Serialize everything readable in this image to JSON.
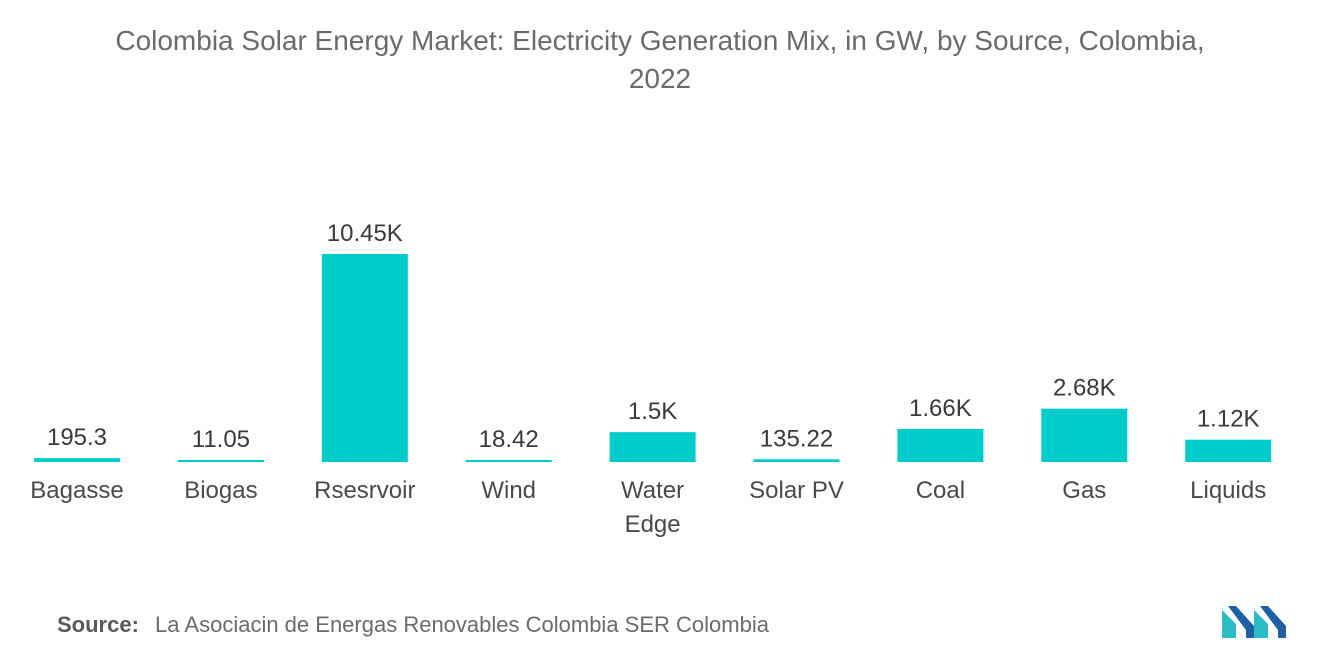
{
  "title": {
    "line1": "Colombia Solar Energy Market: Electricity Generation Mix, in GW, by Source, Colombia,",
    "line2": "2022"
  },
  "chart_data": {
    "type": "bar",
    "categories": [
      "Bagasse",
      "Biogas",
      "Rsesrvoir",
      "Wind",
      "Water Edge",
      "Solar PV",
      "Coal",
      "Gas",
      "Liquids"
    ],
    "values": [
      195.3,
      11.05,
      10450,
      18.42,
      1500,
      135.22,
      1660,
      2680,
      1120
    ],
    "data_labels": [
      "195.3",
      "11.05",
      "10.45K",
      "18.42",
      "1.5K",
      "135.22",
      "1.66K",
      "2.68K",
      "1.12K"
    ],
    "bar_color": "#00cccc",
    "ylim": [
      0,
      10450
    ],
    "grid": false,
    "legend": "none"
  },
  "source": {
    "label": "Source:",
    "text": "La Asociacin de Energas Renovables Colombia SER Colombia"
  },
  "colors": {
    "text": "#6b6b6b",
    "bar": "#00cccc",
    "logo_dark": "#1f5fa6",
    "logo_light": "#2bbcc4"
  }
}
